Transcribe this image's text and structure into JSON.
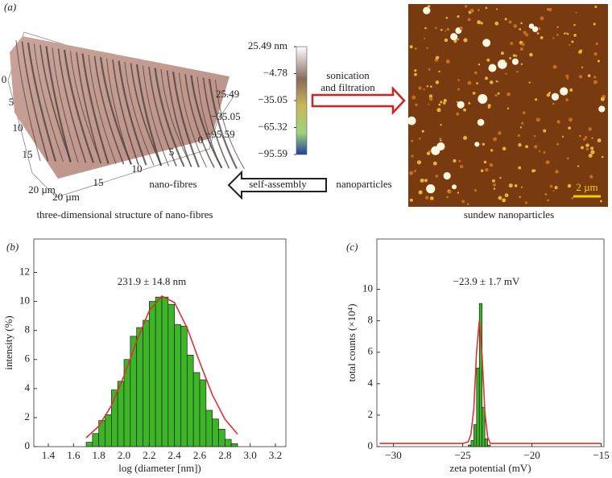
{
  "panel_a": {
    "panel_label": "(a)",
    "axis_y_labels": [
      "0",
      "5",
      "10",
      "15",
      "20 µm"
    ],
    "axis_x_labels": [
      "20 µm",
      "15",
      "10",
      "5",
      "0"
    ],
    "axis_z_labels": [
      "25.49",
      "−35.05",
      "−95.59"
    ],
    "colorbar_lim": [
      -95.59,
      25.49
    ],
    "colorbar_ticks": [
      {
        "value": 25.49,
        "label": "25.49 nm"
      },
      {
        "value": -4.78,
        "label": "−4.78"
      },
      {
        "value": -35.05,
        "label": "−35.05"
      },
      {
        "value": -65.32,
        "label": "−65.32"
      },
      {
        "value": -95.59,
        "label": "−95.59"
      }
    ],
    "arrow_top": [
      "sonication",
      "and filtration"
    ],
    "arrow_bottom": "self-assembly",
    "nanofibres": "nano-fibres",
    "nanoparticles": "nanoparticles",
    "caption_left": "three-dimensional structure of nano-fibres",
    "caption_right": "sundew nanoparticles",
    "scale_bar": "2 µm"
  },
  "chart_data": [
    {
      "type": "histogram",
      "panel_label": "(b)",
      "annotation": "231.9 ± 14.8 nm",
      "xlabel": "log (diameter [nm])",
      "ylabel": "intensity (%)",
      "bins": [
        1.7,
        1.75,
        1.8,
        1.85,
        1.9,
        1.95,
        2.0,
        2.05,
        2.1,
        2.15,
        2.2,
        2.25,
        2.3,
        2.35,
        2.4,
        2.45,
        2.5,
        2.55,
        2.6,
        2.65,
        2.7,
        2.75,
        2.8,
        2.85,
        2.9
      ],
      "counts": [
        0.3,
        0.9,
        1.8,
        2.2,
        3.9,
        4.5,
        6.0,
        7.6,
        8.2,
        8.7,
        10.0,
        10.3,
        10.3,
        9.8,
        8.4,
        8.3,
        6.3,
        5.1,
        4.6,
        2.5,
        1.9,
        1.2,
        0.5,
        0.2
      ],
      "color": "#3cb526",
      "fit": {
        "x": [
          1.7,
          1.8,
          1.9,
          2.0,
          2.1,
          2.2,
          2.3,
          2.4,
          2.5,
          2.6,
          2.7,
          2.8,
          2.9
        ],
        "values": [
          0.61,
          1.41,
          2.82,
          4.88,
          7.27,
          9.35,
          10.37,
          9.92,
          8.18,
          5.82,
          3.57,
          1.89,
          0.86
        ],
        "color": "#e03030"
      },
      "xlim": [
        1.285,
        3.283
      ],
      "ylim": [
        0,
        14.3
      ],
      "xticks": [
        1.4,
        1.6,
        1.8,
        {
          "value": 2.0,
          "label": "2.0"
        },
        2.2,
        2.4,
        2.6,
        2.8,
        {
          "value": 3.0,
          "label": "3.0"
        },
        3.2
      ],
      "yticks": [
        0,
        2,
        4,
        6,
        8,
        10,
        12
      ]
    },
    {
      "type": "histogram",
      "panel_label": "(c)",
      "annotation": "−23.9 ± 1.7 mV",
      "xlabel": "zeta potential (mV)",
      "ylabel": "total counts (×10⁴)",
      "bins": [
        -24.6,
        -24.4,
        -24.2,
        -24.0,
        -23.8,
        -23.6,
        -23.4,
        -23.2,
        -23.0
      ],
      "counts": [
        0.1,
        0.4,
        1.4,
        5.0,
        9.1,
        2.5,
        0.5,
        0.1
      ],
      "color": "#3cb526",
      "fit": {
        "x": [
          -31,
          -25,
          -24.6,
          -24.4,
          -24.2,
          -24.0,
          -23.8,
          -23.6,
          -23.4,
          -23.2,
          -23.0,
          -15
        ],
        "values": [
          0.2,
          0.2,
          0.3,
          0.8,
          2.4,
          6.0,
          8.0,
          5.8,
          2.2,
          0.6,
          0.2,
          0.2
        ],
        "color": "#e03030"
      },
      "xlim": [
        -31.2,
        -14.8
      ],
      "ylim": [
        0,
        13.2
      ],
      "xticks": [
        {
          "value": -30,
          "label": "−30"
        },
        {
          "value": -25,
          "label": "−25"
        },
        {
          "value": -20,
          "label": "−20"
        },
        {
          "value": -15,
          "label": "−15"
        }
      ],
      "yticks": [
        0,
        2,
        4,
        6,
        8,
        10
      ]
    }
  ]
}
